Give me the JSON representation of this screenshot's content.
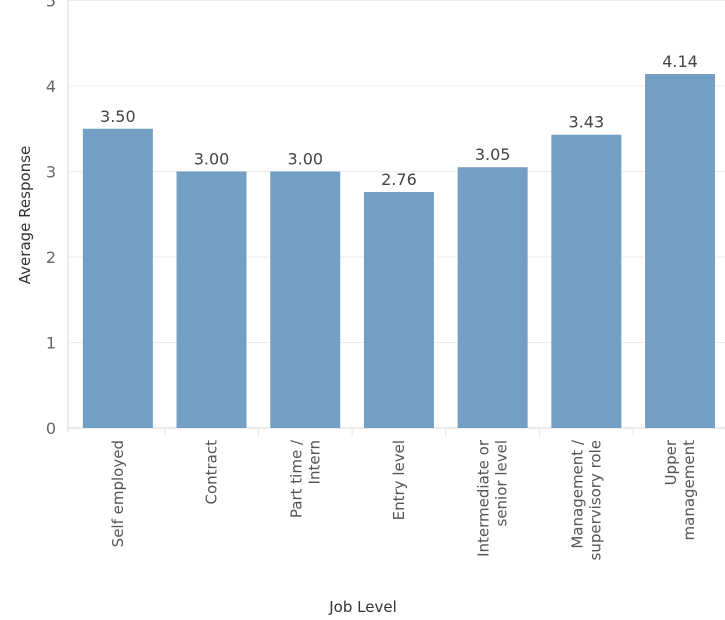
{
  "chart_data": {
    "type": "bar",
    "categories": [
      [
        "Self employed"
      ],
      [
        "Contract"
      ],
      [
        "Part time /",
        "Intern"
      ],
      [
        "Entry level"
      ],
      [
        "Intermediate or",
        "senior level"
      ],
      [
        "Management /",
        "supervisory role"
      ],
      [
        "Upper",
        "management"
      ]
    ],
    "values": [
      3.5,
      3.0,
      3.0,
      2.76,
      3.05,
      3.43,
      4.14
    ],
    "value_labels": [
      "3.50",
      "3.00",
      "3.00",
      "2.76",
      "3.05",
      "3.43",
      "4.14"
    ],
    "xlabel": "Job Level",
    "ylabel": "Average Response",
    "ylim": [
      0,
      5
    ],
    "yticks": [
      "0",
      "1",
      "2",
      "3",
      "4",
      "5"
    ],
    "bar_color": "#749fc4",
    "grid": true
  }
}
